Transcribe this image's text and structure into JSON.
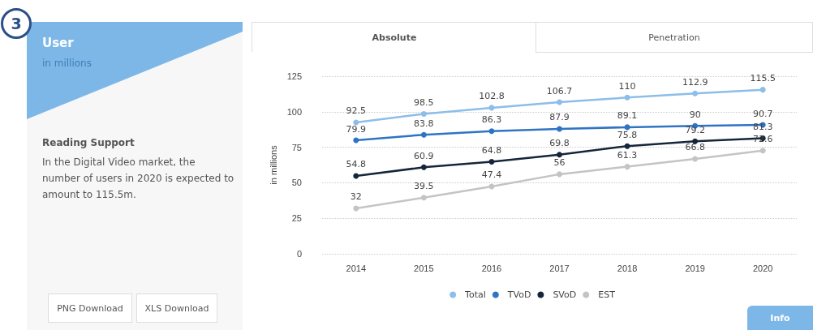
{
  "chart_data": {
    "type": "line",
    "title": "User",
    "subtitle": "in millions",
    "ylabel": "in millions",
    "categories": [
      "2014",
      "2015",
      "2016",
      "2017",
      "2018",
      "2019",
      "2020"
    ],
    "series": [
      {
        "name": "Total",
        "color": "#8dbde9",
        "values": [
          92.5,
          98.5,
          102.8,
          106.7,
          110,
          112.9,
          115.5
        ]
      },
      {
        "name": "TVoD",
        "color": "#2f74c4",
        "values": [
          79.9,
          83.8,
          86.3,
          87.9,
          89.1,
          90,
          90.7
        ]
      },
      {
        "name": "SVoD",
        "color": "#15263a",
        "values": [
          54.8,
          60.9,
          64.8,
          69.8,
          75.8,
          79.2,
          81.3
        ]
      },
      {
        "name": "EST",
        "color": "#c4c4c4",
        "values": [
          32,
          39.5,
          47.4,
          56,
          61.3,
          66.8,
          72.6
        ]
      }
    ],
    "ylim": [
      0,
      125
    ],
    "yticks": [
      0,
      25,
      50,
      75,
      100,
      125
    ],
    "grid": "y",
    "legend": "bottom",
    "marker": "circle",
    "line_style": "solid",
    "data_labels": true,
    "annotations": [
      "Reading Support",
      "In the Digital Video market, the number of users in 2020 is expected to amount to 115.5m.",
      "PNG Download",
      "XLS Download",
      "Absolute",
      "Penetration",
      "Info",
      "3"
    ]
  }
}
